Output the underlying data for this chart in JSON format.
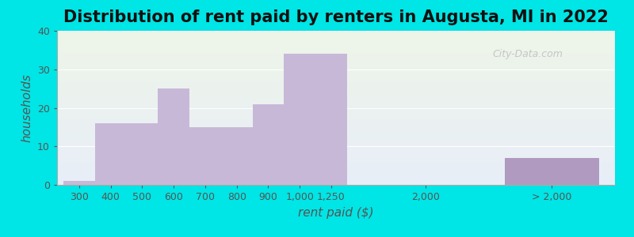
{
  "title": "Distribution of rent paid by renters in Augusta, MI in 2022",
  "xlabel": "rent paid ($)",
  "ylabel": "households",
  "bar_color_light": "#c8b8d8",
  "bar_color_dark": "#b09ac0",
  "background_outer": "#00e5e5",
  "background_inner_top": "#eef5e8",
  "background_inner_bottom": "#e8eef8",
  "ylim": [
    0,
    40
  ],
  "yticks": [
    0,
    10,
    20,
    30,
    40
  ],
  "bars": [
    {
      "label": "300",
      "value": 1,
      "x": 0
    },
    {
      "label": "400",
      "value": 16,
      "x": 1
    },
    {
      "label": "500",
      "value": 16,
      "x": 2
    },
    {
      "label": "600",
      "value": 25,
      "x": 3
    },
    {
      "label": "700",
      "value": 15,
      "x": 4
    },
    {
      "label": "800",
      "value": 15,
      "x": 5
    },
    {
      "label": "900",
      "value": 21,
      "x": 6
    },
    {
      "label": "1,000",
      "value": 34,
      "x": 7
    },
    {
      "label": "1,250",
      "value": 34,
      "x": 8
    },
    {
      "label": "2,000",
      "value": 0,
      "x": 9
    },
    {
      "label": "> 2,000",
      "value": 7,
      "x": 10
    }
  ],
  "watermark": "City-Data.com",
  "title_fontsize": 15,
  "axis_label_fontsize": 11,
  "tick_fontsize": 9
}
